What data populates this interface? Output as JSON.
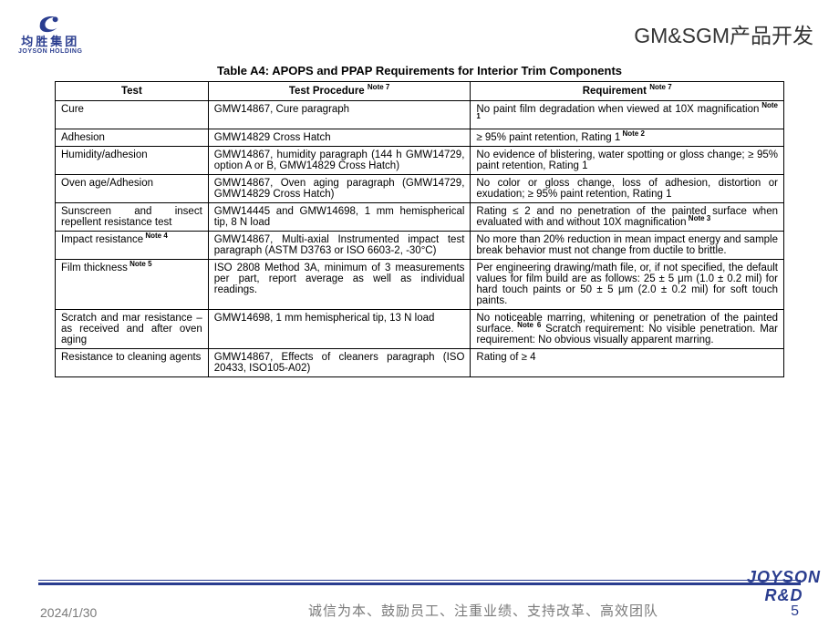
{
  "header": {
    "logo_cn": "均胜集团",
    "logo_en": "JOYSON HOLDING",
    "page_title": "GM&SGM产品开发"
  },
  "table": {
    "title": "Table A4: APOPS and PPAP Requirements for Interior Trim Components",
    "headers": {
      "test": "Test",
      "procedure": "Test Procedure",
      "procedure_sup": "Note 7",
      "requirement": "Requirement",
      "requirement_sup": "Note 7"
    },
    "rows": [
      {
        "test": "Cure",
        "procedure": "GMW14867, Cure paragraph",
        "requirement": "No paint film degradation when viewed at 10X magnification",
        "requirement_sup": "Note 1"
      },
      {
        "test": "Adhesion",
        "procedure": "GMW14829 Cross Hatch",
        "requirement": "≥ 95% paint retention, Rating 1",
        "requirement_sup": "Note 2"
      },
      {
        "test": "Humidity/adhesion",
        "procedure": "GMW14867, humidity paragraph (144 h GMW14729, option A or B, GMW14829 Cross Hatch)",
        "requirement": "No evidence of blistering, water spotting or gloss change; ≥ 95% paint retention, Rating 1"
      },
      {
        "test": "Oven age/Adhesion",
        "procedure": "GMW14867, Oven aging paragraph (GMW14729, GMW14829 Cross Hatch)",
        "requirement": "No color or gloss change, loss of adhesion, distortion or exudation; ≥ 95% paint retention, Rating 1"
      },
      {
        "test": "Sunscreen and insect repellent resistance test",
        "procedure": "GMW14445 and GMW14698, 1 mm hemispherical tip, 8 N load",
        "requirement": "Rating ≤ 2 and no penetration of the painted surface when evaluated with and without 10X magnification",
        "requirement_sup": "Note 3"
      },
      {
        "test": "Impact resistance",
        "test_sup": "Note 4",
        "procedure": "GMW14867, Multi-axial Instrumented impact test paragraph (ASTM D3763 or ISO 6603-2, -30°C)",
        "requirement": "No more than 20% reduction in mean impact energy and sample break behavior must not change from ductile to brittle."
      },
      {
        "test": "Film thickness",
        "test_sup": "Note 5",
        "procedure": "ISO 2808 Method 3A, minimum of 3 measurements per part, report average as well as individual readings.",
        "requirement": "Per engineering drawing/math file, or, if not specified, the default values for film build are as follows: 25 ± 5 μm (1.0 ± 0.2 mil) for hard touch paints or 50 ± 5 μm (2.0 ± 0.2 mil) for soft touch paints."
      },
      {
        "test": "Scratch and mar resistance – as received and after oven aging",
        "procedure": "GMW14698, 1 mm hemispherical tip, 13 N load",
        "requirement": "No noticeable marring, whitening or penetration of the painted surface.",
        "requirement_sup": "Note 6",
        "requirement_extra": " Scratch requirement: No visible penetration. Mar requirement: No obvious visually apparent marring."
      },
      {
        "test": "Resistance to cleaning agents",
        "procedure": "GMW14867, Effects of cleaners paragraph (ISO 20433, ISO105-A02)",
        "requirement": "Rating of ≥ 4"
      }
    ]
  },
  "brand_block": {
    "line1": "JOYSON",
    "line2": "R&D"
  },
  "footer": {
    "date": "2024/1/30",
    "motto": "诚信为本、鼓励员工、注重业绩、支持改革、高效团队",
    "page": "5"
  },
  "colors": {
    "brand": "#2a3d8f",
    "text_muted": "#7a7a7a",
    "border": "#000000",
    "background": "#ffffff"
  }
}
